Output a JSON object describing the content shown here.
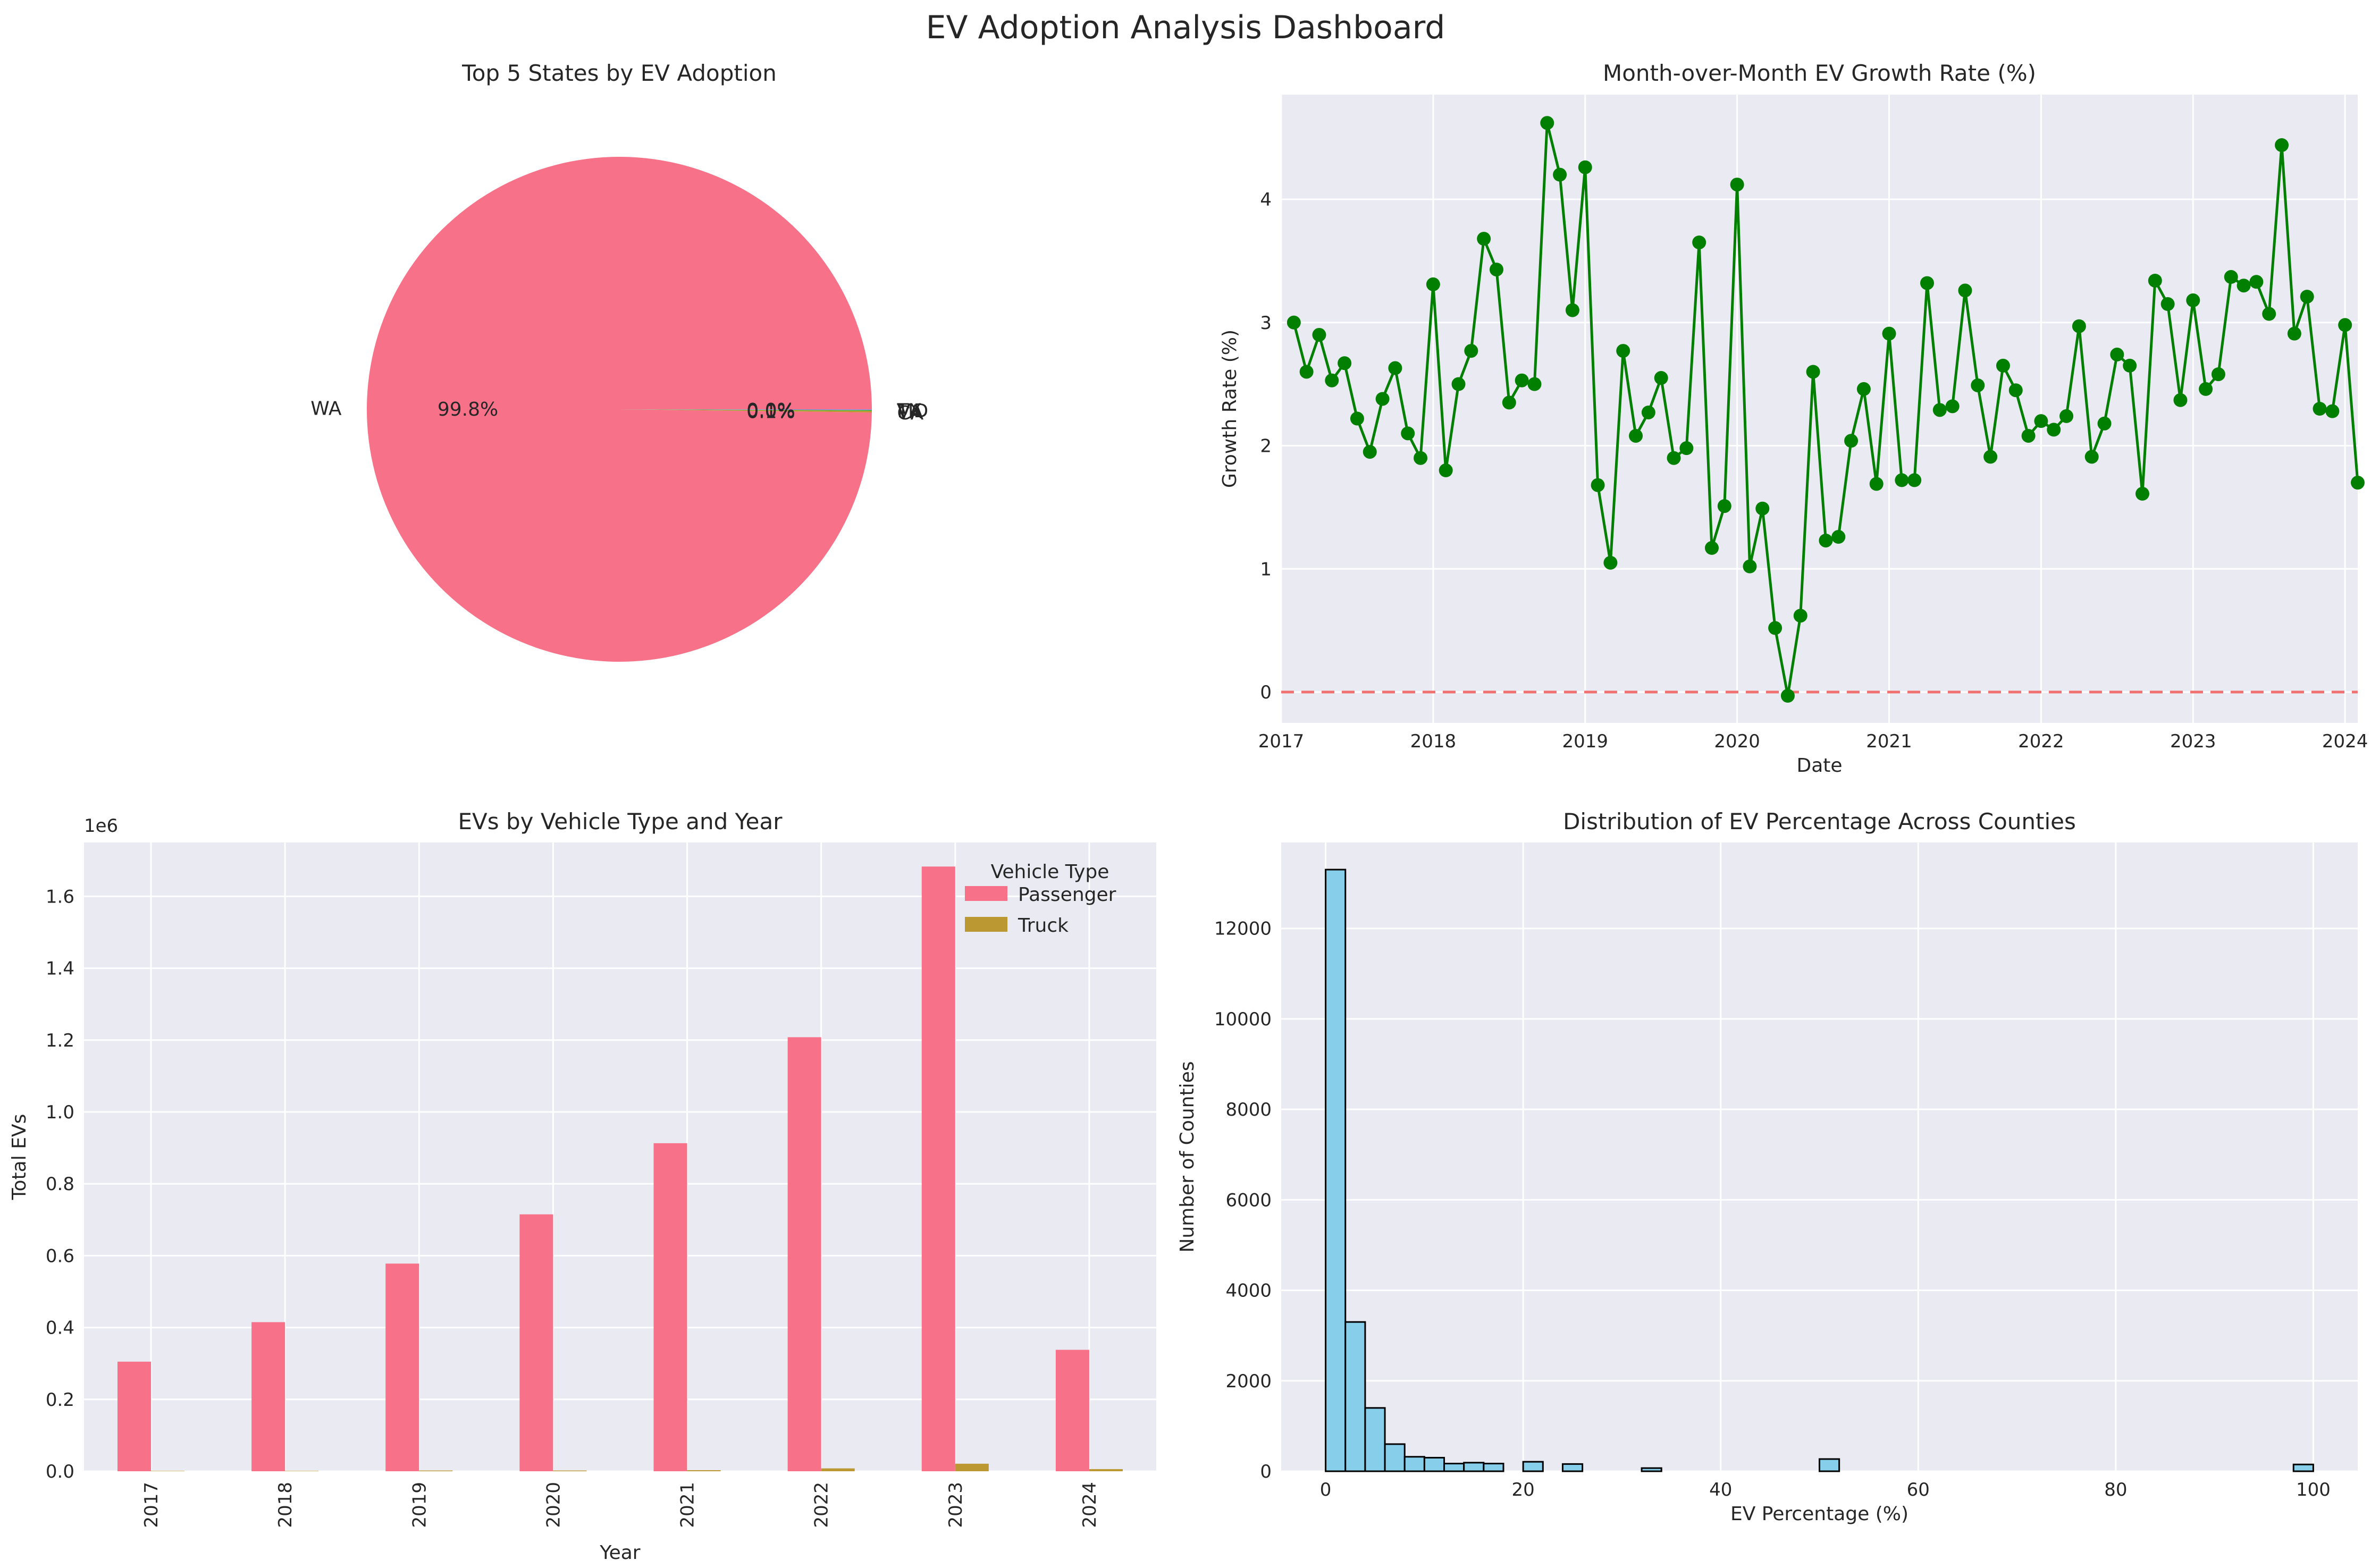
{
  "figure": {
    "title": "EV Adoption Analysis Dashboard"
  },
  "colors": {
    "panel_bg": "#eaeaf2",
    "grid": "#ffffff",
    "text": "#262626",
    "passenger": "#f77189",
    "truck": "#bb9832",
    "line": "#007f00",
    "zero_line": "#f07070",
    "hist": "#87ceeb"
  },
  "chart_data": [
    {
      "type": "pie",
      "title": "Top 5 States by EV Adoption",
      "slices": [
        {
          "label": "WA",
          "value": 99.8,
          "pct_label": "99.8%",
          "color": "#f77189"
        },
        {
          "label": "CA",
          "value": 0.1,
          "pct_label": "0.1%",
          "color": "#bb9832"
        },
        {
          "label": "VA",
          "value": 0.05,
          "pct_label": "0.0%",
          "color": "#50b131"
        },
        {
          "label": "MD",
          "value": 0.03,
          "pct_label": "0.0%",
          "color": "#3ba3ec"
        },
        {
          "label": "TX",
          "value": 0.02,
          "pct_label": "0.0%",
          "color": "#e866f4"
        }
      ]
    },
    {
      "type": "line",
      "title": "Month-over-Month EV Growth Rate (%)",
      "xlabel": "Date",
      "ylabel": "Growth Rate (%)",
      "x_start": "2017-02",
      "x_ticks": [
        "2017",
        "2018",
        "2019",
        "2020",
        "2021",
        "2022",
        "2023",
        "2024"
      ],
      "xlim": [
        "2017-01",
        "2024-02"
      ],
      "ylim": [
        -0.25,
        4.85
      ],
      "y_ticks": [
        0,
        1,
        2,
        3,
        4
      ],
      "reference_line": 0,
      "values": [
        3.0,
        2.6,
        2.9,
        2.53,
        2.67,
        2.22,
        1.95,
        2.38,
        2.63,
        2.1,
        1.9,
        3.31,
        1.8,
        2.5,
        2.77,
        3.68,
        3.43,
        2.35,
        2.53,
        2.5,
        4.62,
        4.2,
        3.1,
        4.26,
        1.68,
        1.05,
        2.77,
        2.08,
        2.27,
        2.55,
        1.9,
        1.98,
        3.65,
        1.17,
        1.51,
        4.12,
        1.02,
        1.49,
        0.52,
        -0.03,
        0.62,
        2.6,
        1.23,
        1.26,
        2.04,
        2.46,
        1.69,
        2.91,
        1.72,
        1.72,
        3.32,
        2.29,
        2.32,
        3.26,
        2.49,
        1.91,
        2.65,
        2.45,
        2.08,
        2.2,
        2.13,
        2.24,
        2.97,
        1.91,
        2.18,
        2.74,
        2.65,
        1.61,
        3.34,
        3.15,
        2.37,
        3.18,
        2.46,
        2.58,
        3.37,
        3.3,
        3.33,
        3.07,
        4.44,
        2.91,
        3.21,
        2.3,
        2.28,
        2.98,
        1.7
      ]
    },
    {
      "type": "bar",
      "title": "EVs by Vehicle Type and Year",
      "xlabel": "Year",
      "ylabel": "Total EVs",
      "y_offset_label": "1e6",
      "categories": [
        "2017",
        "2018",
        "2019",
        "2020",
        "2021",
        "2022",
        "2023",
        "2024"
      ],
      "ylim": [
        0,
        1.75
      ],
      "y_ticks": [
        "0.0",
        "0.2",
        "0.4",
        "0.6",
        "0.8",
        "1.0",
        "1.2",
        "1.4",
        "1.6"
      ],
      "legend_title": "Vehicle Type",
      "legend_position": "top-right",
      "series": [
        {
          "name": "Passenger",
          "values": [
            0.305,
            0.415,
            0.578,
            0.715,
            0.913,
            1.208,
            1.683,
            0.338
          ]
        },
        {
          "name": "Truck",
          "values": [
            0.001,
            0.001,
            0.002,
            0.002,
            0.003,
            0.008,
            0.021,
            0.006
          ]
        }
      ]
    },
    {
      "type": "bar",
      "title": "Distribution of EV Percentage Across Counties",
      "xlabel": "EV Percentage (%)",
      "ylabel": "Number of Counties",
      "bin_width": 2,
      "xlim": [
        -4.5,
        104.5
      ],
      "ylim": [
        0,
        13900
      ],
      "x_ticks": [
        0,
        20,
        40,
        60,
        80,
        100
      ],
      "y_ticks": [
        0,
        2000,
        4000,
        6000,
        8000,
        10000,
        12000
      ],
      "bins": [
        {
          "x": 0,
          "count": 13300
        },
        {
          "x": 2,
          "count": 3300
        },
        {
          "x": 4,
          "count": 1400
        },
        {
          "x": 6,
          "count": 600
        },
        {
          "x": 8,
          "count": 320
        },
        {
          "x": 10,
          "count": 300
        },
        {
          "x": 12,
          "count": 170
        },
        {
          "x": 14,
          "count": 190
        },
        {
          "x": 16,
          "count": 170
        },
        {
          "x": 20,
          "count": 210
        },
        {
          "x": 24,
          "count": 160
        },
        {
          "x": 32,
          "count": 70
        },
        {
          "x": 50,
          "count": 270
        },
        {
          "x": 98,
          "count": 150
        }
      ]
    }
  ]
}
